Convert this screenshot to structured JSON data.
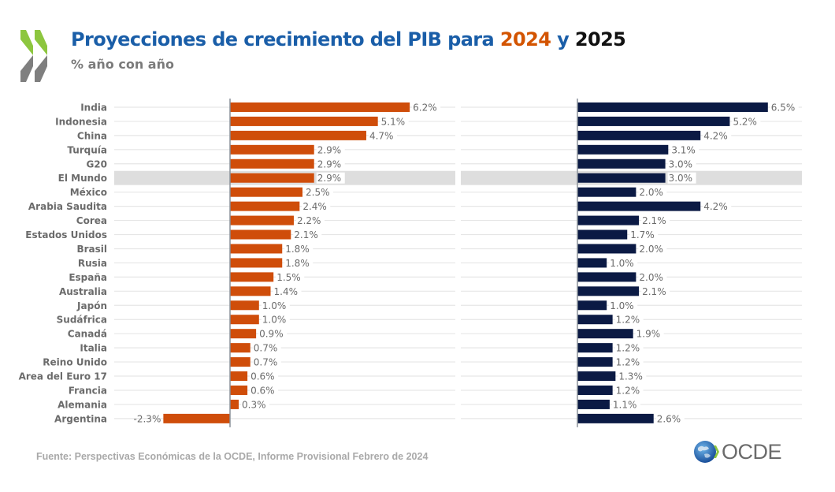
{
  "header": {
    "title_part1": "Proyecciones de crecimiento del PIB para ",
    "title_year1": "2024",
    "title_join": " y ",
    "title_year2": "2025",
    "subtitle": "% año con año"
  },
  "footer": {
    "source": "Fuente: Perspectivas Económicas de la OCDE, Informe Provisional Febrero de 2024",
    "logo_text": "OCDE"
  },
  "colors": {
    "series_2024": "#cf4d0a",
    "series_2025": "#0b1a44",
    "highlight_row": "#dedede",
    "gridline": "#e6e6e6",
    "axis": "#8a9199",
    "label_text": "#6b6b6b",
    "title_blue": "#1a5ea8",
    "logo_green": "#8dc63f",
    "logo_gray": "#7f7f7f"
  },
  "chart_data": {
    "type": "bar",
    "orientation": "horizontal",
    "title": "Proyecciones de crecimiento del PIB para 2024 y 2025",
    "subtitle": "% año con año",
    "xlabel": "",
    "ylabel": "",
    "grid": true,
    "value_format": "{v}%",
    "highlight_category": "El Mundo",
    "categories": [
      "India",
      "Indonesia",
      "China",
      "Turquía",
      "G20",
      "El Mundo",
      "México",
      "Arabia Saudita",
      "Corea",
      "Estados Unidos",
      "Brasil",
      "Rusia",
      "España",
      "Australia",
      "Japón",
      "Sudáfrica",
      "Canadá",
      "Italia",
      "Reino Unido",
      "Area del Euro 17",
      "Francia",
      "Alemania",
      "Argentina"
    ],
    "series": [
      {
        "name": "2024",
        "values": [
          6.2,
          5.1,
          4.7,
          2.9,
          2.9,
          2.9,
          2.5,
          2.4,
          2.2,
          2.1,
          1.8,
          1.8,
          1.5,
          1.4,
          1.0,
          1.0,
          0.9,
          0.7,
          0.7,
          0.6,
          0.6,
          0.3,
          -2.3
        ]
      },
      {
        "name": "2025",
        "values": [
          6.5,
          5.2,
          4.2,
          3.1,
          3.0,
          3.0,
          2.0,
          4.2,
          2.1,
          1.7,
          2.0,
          1.0,
          2.0,
          2.1,
          1.0,
          1.2,
          1.9,
          1.2,
          1.2,
          1.3,
          1.2,
          1.1,
          2.6
        ]
      }
    ]
  }
}
